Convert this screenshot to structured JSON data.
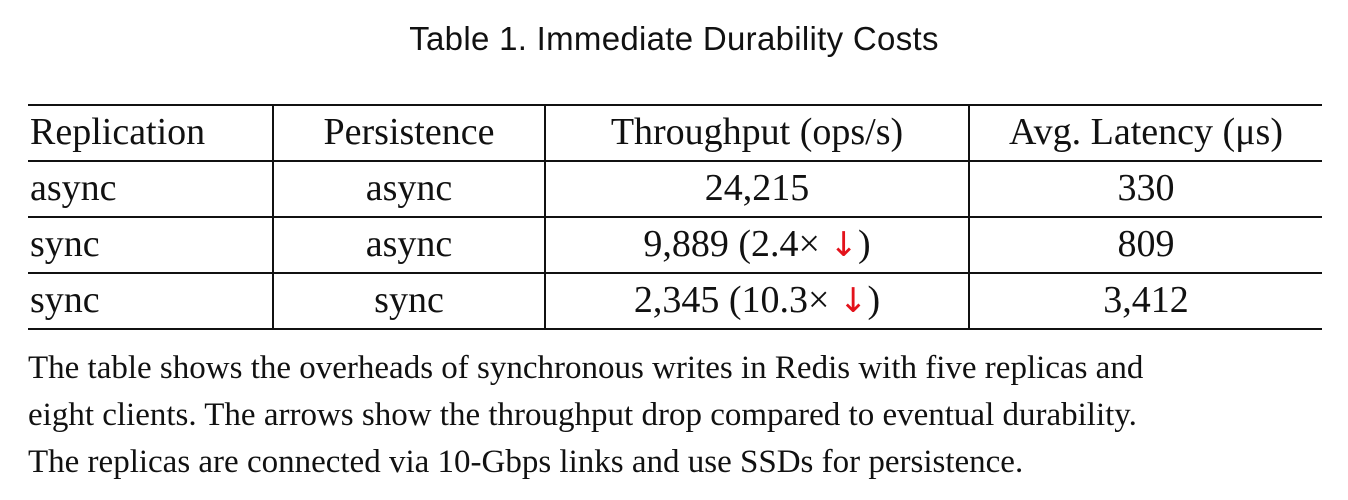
{
  "title": "Table 1.  Immediate Durability Costs",
  "table": {
    "headers": {
      "replication": "Replication",
      "persistence": "Persistence",
      "throughput": "Throughput (ops/s)",
      "latency": "Avg. Latency (μs)"
    },
    "rows": [
      {
        "replication": "async",
        "persistence": "async",
        "throughput": "24,215",
        "drop": "",
        "latency": "330"
      },
      {
        "replication": "sync",
        "persistence": "async",
        "throughput": "9,889 (2.4×",
        "drop": "↓",
        "close": ")",
        "latency": "809"
      },
      {
        "replication": "sync",
        "persistence": "sync",
        "throughput": "2,345 (10.3×",
        "drop": "↓",
        "close": ")",
        "latency": "3,412"
      }
    ],
    "drop_color": "#e3121b"
  },
  "notes": [
    "The table shows the overheads of synchronous writes in Redis with five replicas and",
    "eight clients. The arrows show the throughput drop compared to eventual durability.",
    "The replicas are connected via 10-Gbps links and use SSDs for persistence."
  ]
}
